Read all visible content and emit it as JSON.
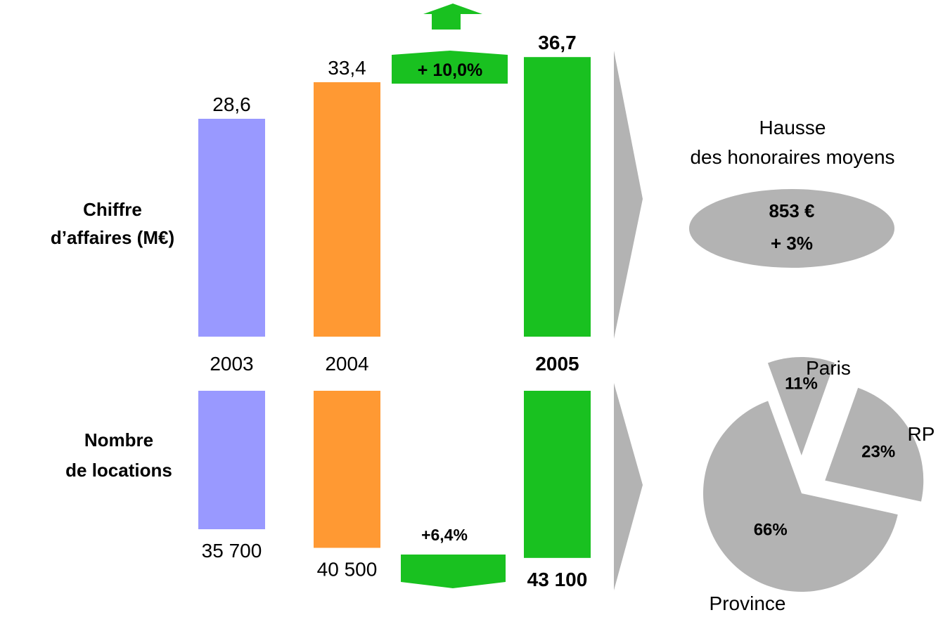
{
  "colors": {
    "y2003": "#9999FF",
    "y2004": "#FF9933",
    "y2005": "#19C120",
    "grey": "#B3B3B3",
    "white": "#FFFFFF"
  },
  "chart_data": [
    {
      "type": "bar",
      "title_lines": [
        "Chiffre",
        "d’affaires (M€)"
      ],
      "categories": [
        "2003",
        "2004",
        "2005"
      ],
      "values": [
        28.6,
        33.4,
        36.7
      ],
      "value_labels": [
        "28,6",
        "33,4",
        "36,7"
      ],
      "growth_label": "+ 10,0%",
      "ylim": [
        0,
        40
      ]
    },
    {
      "type": "bar",
      "title_lines": [
        "Nombre",
        "de locations"
      ],
      "categories": [
        "2003",
        "2004",
        "2005"
      ],
      "values": [
        35700,
        40500,
        43100
      ],
      "value_labels": [
        "35 700",
        "40 500",
        "43 100"
      ],
      "growth_label": "+6,4%",
      "ylim": [
        0,
        45000
      ]
    },
    {
      "type": "pie",
      "labels": [
        "Paris",
        "RP",
        "Province"
      ],
      "values": [
        11,
        23,
        66
      ],
      "value_labels": [
        "11%",
        "23%",
        "66%"
      ]
    }
  ],
  "fees": {
    "heading_lines": [
      "Hausse",
      "des honoraires moyens"
    ],
    "amount": "853 €",
    "change": "+ 3%"
  }
}
